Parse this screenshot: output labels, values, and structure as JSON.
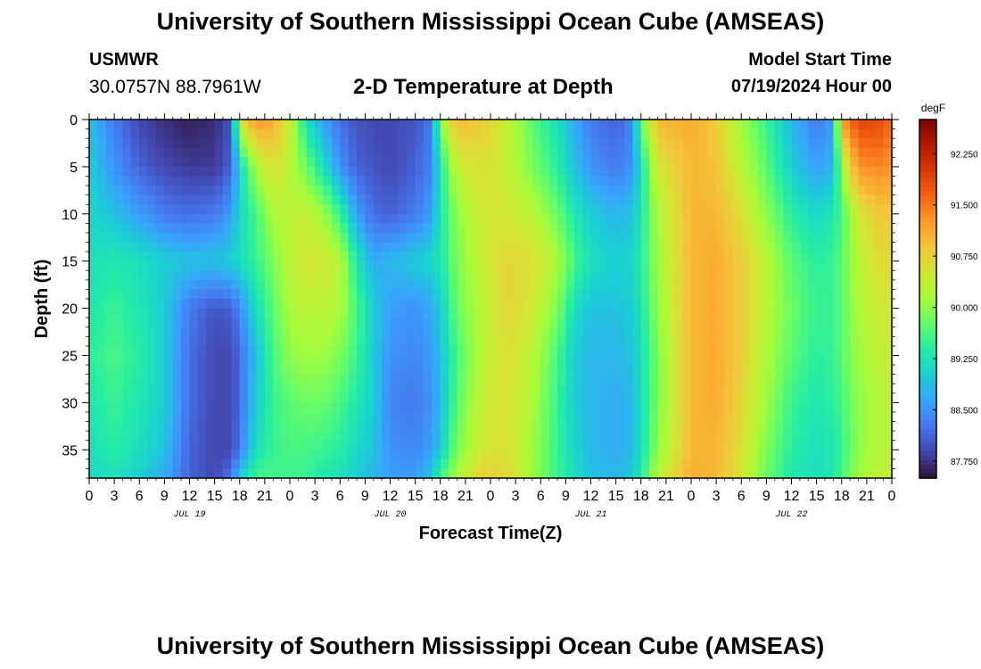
{
  "header": {
    "title": "University of Southern Mississippi Ocean Cube (AMSEAS)",
    "station": "USMWR",
    "coords": "30.0757N  88.7961W",
    "subtitle": "2-D Temperature at Depth",
    "start_label": "Model Start Time",
    "start_value": "07/19/2024 Hour 00"
  },
  "footer": {
    "title": "University of Southern Mississippi Ocean Cube (AMSEAS)"
  },
  "chart_data": {
    "type": "heatmap",
    "title": "2-D Temperature at Depth",
    "xlabel": "Forecast Time(Z)",
    "ylabel": "Depth (ft)",
    "x_hours_range": [
      0,
      96
    ],
    "x_ticks": [
      "0",
      "3",
      "6",
      "9",
      "12",
      "15",
      "18",
      "21",
      "0",
      "3",
      "6",
      "9",
      "12",
      "15",
      "18",
      "21",
      "0",
      "3",
      "6",
      "9",
      "12",
      "15",
      "18",
      "21",
      "0",
      "3",
      "6",
      "9",
      "12",
      "15",
      "18",
      "21",
      "0"
    ],
    "date_labels": [
      {
        "label": "JUL 19",
        "hour": 12
      },
      {
        "label": "JUL 20",
        "hour": 36
      },
      {
        "label": "JUL 21",
        "hour": 60
      },
      {
        "label": "JUL 22",
        "hour": 84
      }
    ],
    "y_ticks": [
      0,
      5,
      10,
      15,
      20,
      25,
      30,
      35
    ],
    "ylim": [
      0,
      38
    ],
    "y_inverted": true,
    "colorbar": {
      "unit": "degF",
      "range": [
        87.5,
        92.75
      ],
      "tick_values": [
        87.75,
        88.5,
        89.25,
        90.0,
        90.75,
        91.5,
        92.25
      ],
      "tick_labels": [
        "87.750",
        "88.500",
        "89.250",
        "90.000",
        "90.750",
        "91.500",
        "92.250"
      ],
      "colors": [
        "#30123b",
        "#4145ab",
        "#4675ed",
        "#39a2fc",
        "#1bcfd4",
        "#24eca6",
        "#61fc6c",
        "#a4fc3b",
        "#d1e834",
        "#f3c63a",
        "#fe9b2d",
        "#f36315",
        "#d93806",
        "#b11901",
        "#7a0402"
      ]
    },
    "depths_ft": [
      0,
      5,
      10,
      15,
      20,
      25,
      30,
      35,
      38
    ],
    "columns": [
      {
        "hour": 0,
        "temps": [
          88.9,
          89.0,
          89.1,
          89.2,
          89.3,
          89.4,
          89.3,
          89.2,
          89.1
        ]
      },
      {
        "hour": 3,
        "temps": [
          88.3,
          88.5,
          88.9,
          89.3,
          89.5,
          89.6,
          89.5,
          89.4,
          89.2
        ]
      },
      {
        "hour": 6,
        "temps": [
          87.9,
          88.1,
          88.6,
          89.2,
          89.3,
          89.4,
          89.3,
          89.2,
          89.0
        ]
      },
      {
        "hour": 9,
        "temps": [
          87.7,
          87.9,
          88.3,
          89.0,
          89.0,
          89.0,
          89.0,
          88.9,
          88.7
        ]
      },
      {
        "hour": 12,
        "temps": [
          87.6,
          87.8,
          88.2,
          88.9,
          88.3,
          88.2,
          88.2,
          88.1,
          88.1
        ]
      },
      {
        "hour": 15,
        "temps": [
          87.7,
          87.8,
          88.3,
          88.9,
          88.0,
          87.9,
          87.9,
          87.9,
          87.9
        ]
      },
      {
        "hour": 17,
        "temps": [
          88.0,
          88.1,
          88.6,
          89.0,
          88.1,
          87.9,
          87.9,
          87.9,
          88.3
        ]
      },
      {
        "hour": 18,
        "temps": [
          90.5,
          89.1,
          89.1,
          89.2,
          88.4,
          88.2,
          88.2,
          88.3,
          89.0
        ]
      },
      {
        "hour": 20,
        "temps": [
          91.3,
          90.2,
          89.6,
          89.5,
          89.2,
          88.9,
          89.0,
          89.2,
          89.6
        ]
      },
      {
        "hour": 22,
        "temps": [
          91.1,
          90.6,
          90.2,
          89.9,
          89.7,
          89.6,
          89.5,
          89.5,
          89.6
        ]
      },
      {
        "hour": 24,
        "temps": [
          90.4,
          90.3,
          90.3,
          90.3,
          90.2,
          90.0,
          89.7,
          89.6,
          89.5
        ]
      },
      {
        "hour": 26,
        "temps": [
          89.2,
          89.8,
          90.4,
          90.5,
          90.3,
          90.1,
          89.8,
          89.6,
          89.5
        ]
      },
      {
        "hour": 28,
        "temps": [
          88.6,
          89.2,
          90.1,
          90.5,
          90.3,
          90.1,
          89.8,
          89.5,
          89.3
        ]
      },
      {
        "hour": 30,
        "temps": [
          88.2,
          88.5,
          89.5,
          90.3,
          90.2,
          89.9,
          89.6,
          89.4,
          89.2
        ]
      },
      {
        "hour": 32,
        "temps": [
          88.0,
          88.1,
          88.6,
          89.3,
          89.6,
          89.5,
          89.3,
          89.1,
          89.0
        ]
      },
      {
        "hour": 34,
        "temps": [
          87.9,
          88.0,
          88.2,
          88.7,
          89.0,
          89.0,
          89.0,
          88.9,
          88.8
        ]
      },
      {
        "hour": 36,
        "temps": [
          87.9,
          87.9,
          88.1,
          88.8,
          88.6,
          88.5,
          88.4,
          88.5,
          88.6
        ]
      },
      {
        "hour": 39,
        "temps": [
          88.0,
          88.1,
          88.3,
          89.0,
          88.5,
          88.4,
          88.3,
          88.4,
          88.6
        ]
      },
      {
        "hour": 41,
        "temps": [
          88.3,
          88.4,
          88.6,
          89.1,
          88.7,
          88.6,
          88.5,
          88.6,
          89.0
        ]
      },
      {
        "hour": 42,
        "temps": [
          90.0,
          89.3,
          89.3,
          89.3,
          89.0,
          88.9,
          88.8,
          89.0,
          89.6
        ]
      },
      {
        "hour": 44,
        "temps": [
          91.0,
          90.4,
          90.0,
          89.9,
          89.8,
          89.6,
          89.7,
          89.9,
          90.2
        ]
      },
      {
        "hour": 47,
        "temps": [
          90.8,
          90.6,
          90.5,
          90.4,
          90.3,
          90.3,
          90.4,
          90.5,
          90.8
        ]
      },
      {
        "hour": 50,
        "temps": [
          90.4,
          90.4,
          90.5,
          90.7,
          90.7,
          90.6,
          90.6,
          90.6,
          90.7
        ]
      },
      {
        "hour": 53,
        "temps": [
          89.7,
          89.9,
          90.3,
          90.6,
          90.5,
          90.3,
          90.2,
          90.1,
          90.1
        ]
      },
      {
        "hour": 56,
        "temps": [
          89.2,
          89.4,
          89.8,
          90.2,
          89.9,
          89.6,
          89.5,
          89.5,
          89.5
        ]
      },
      {
        "hour": 58,
        "temps": [
          88.7,
          88.9,
          89.3,
          89.6,
          89.2,
          89.0,
          89.0,
          89.1,
          89.2
        ]
      },
      {
        "hour": 60,
        "temps": [
          88.3,
          88.5,
          89.0,
          89.2,
          88.9,
          88.8,
          88.8,
          88.8,
          88.9
        ]
      },
      {
        "hour": 63,
        "temps": [
          88.1,
          88.3,
          88.8,
          89.0,
          88.9,
          88.8,
          88.7,
          88.7,
          88.8
        ]
      },
      {
        "hour": 65,
        "temps": [
          88.4,
          88.5,
          88.9,
          89.1,
          89.0,
          88.9,
          88.8,
          88.8,
          89.0
        ]
      },
      {
        "hour": 66,
        "temps": [
          89.8,
          89.2,
          89.3,
          89.4,
          89.3,
          89.2,
          89.2,
          89.2,
          89.4
        ]
      },
      {
        "hour": 68,
        "temps": [
          91.0,
          90.5,
          90.2,
          90.1,
          90.0,
          89.9,
          89.9,
          90.0,
          90.3
        ]
      },
      {
        "hour": 72,
        "temps": [
          91.1,
          91.0,
          91.0,
          91.0,
          91.0,
          91.0,
          91.0,
          91.0,
          91.1
        ]
      },
      {
        "hour": 75,
        "temps": [
          90.8,
          90.9,
          91.0,
          91.1,
          91.1,
          91.1,
          91.1,
          91.0,
          91.0
        ]
      },
      {
        "hour": 78,
        "temps": [
          90.1,
          90.3,
          90.6,
          90.8,
          90.8,
          90.8,
          90.7,
          90.6,
          90.5
        ]
      },
      {
        "hour": 81,
        "temps": [
          89.5,
          89.7,
          90.0,
          90.3,
          90.3,
          90.2,
          90.1,
          89.9,
          89.8
        ]
      },
      {
        "hour": 84,
        "temps": [
          88.8,
          89.0,
          89.4,
          89.7,
          89.8,
          89.7,
          89.5,
          89.4,
          89.3
        ]
      },
      {
        "hour": 87,
        "temps": [
          88.3,
          88.6,
          89.1,
          89.4,
          89.5,
          89.4,
          89.3,
          89.2,
          89.2
        ]
      },
      {
        "hour": 89,
        "temps": [
          88.6,
          88.8,
          89.3,
          89.5,
          89.5,
          89.5,
          89.4,
          89.3,
          89.3
        ]
      },
      {
        "hour": 90,
        "temps": [
          91.2,
          90.1,
          89.6,
          89.7,
          89.7,
          89.7,
          89.6,
          89.5,
          89.6
        ]
      },
      {
        "hour": 92,
        "temps": [
          91.9,
          91.3,
          90.5,
          90.3,
          90.2,
          90.1,
          90.0,
          90.0,
          90.1
        ]
      },
      {
        "hour": 95,
        "temps": [
          91.8,
          91.4,
          90.9,
          90.7,
          90.5,
          90.4,
          90.3,
          90.3,
          90.4
        ]
      },
      {
        "hour": 96,
        "temps": [
          91.5,
          91.2,
          90.8,
          90.6,
          90.5,
          90.4,
          90.3,
          90.3,
          90.3
        ]
      }
    ]
  }
}
